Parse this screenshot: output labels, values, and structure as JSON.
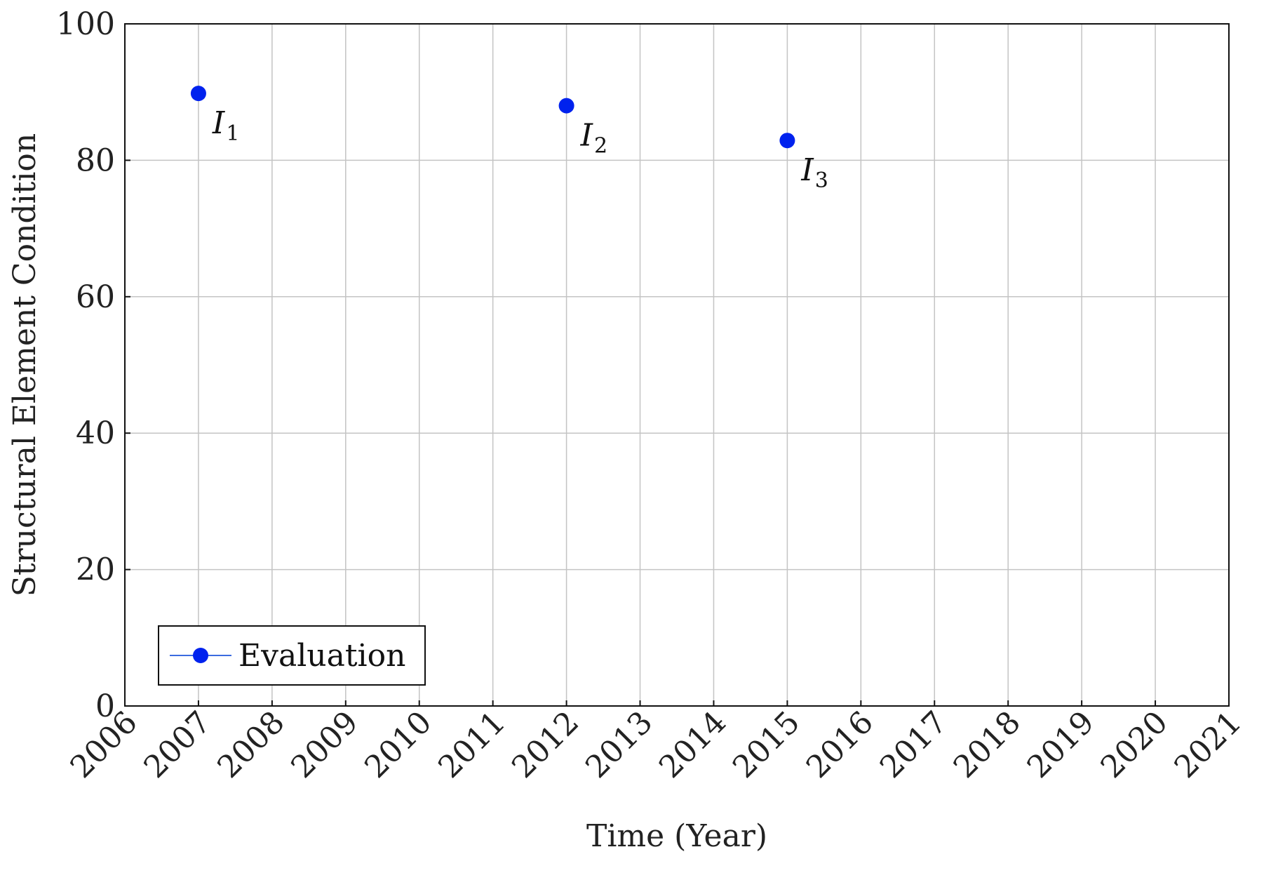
{
  "chart_data": {
    "type": "scatter",
    "xlabel": "Time (Year)",
    "ylabel": "Structural Element Condition",
    "xlim": [
      2006,
      2021
    ],
    "ylim": [
      0,
      100
    ],
    "xticks": [
      "2006",
      "2007",
      "2008",
      "2009",
      "2010",
      "2011",
      "2012",
      "2013",
      "2014",
      "2015",
      "2016",
      "2017",
      "2018",
      "2019",
      "2020",
      "2021"
    ],
    "yticks": [
      "0",
      "20",
      "40",
      "60",
      "80",
      "100"
    ],
    "grid": true,
    "legend_position": "bottom-left",
    "series": [
      {
        "name": "Evaluation",
        "color": "#0022ee",
        "x": [
          2007,
          2012,
          2015
        ],
        "y": [
          89.8,
          88.0,
          82.9
        ],
        "labels": [
          {
            "main": "I",
            "sub": "1"
          },
          {
            "main": "I",
            "sub": "2"
          },
          {
            "main": "I",
            "sub": "3"
          }
        ]
      }
    ]
  }
}
